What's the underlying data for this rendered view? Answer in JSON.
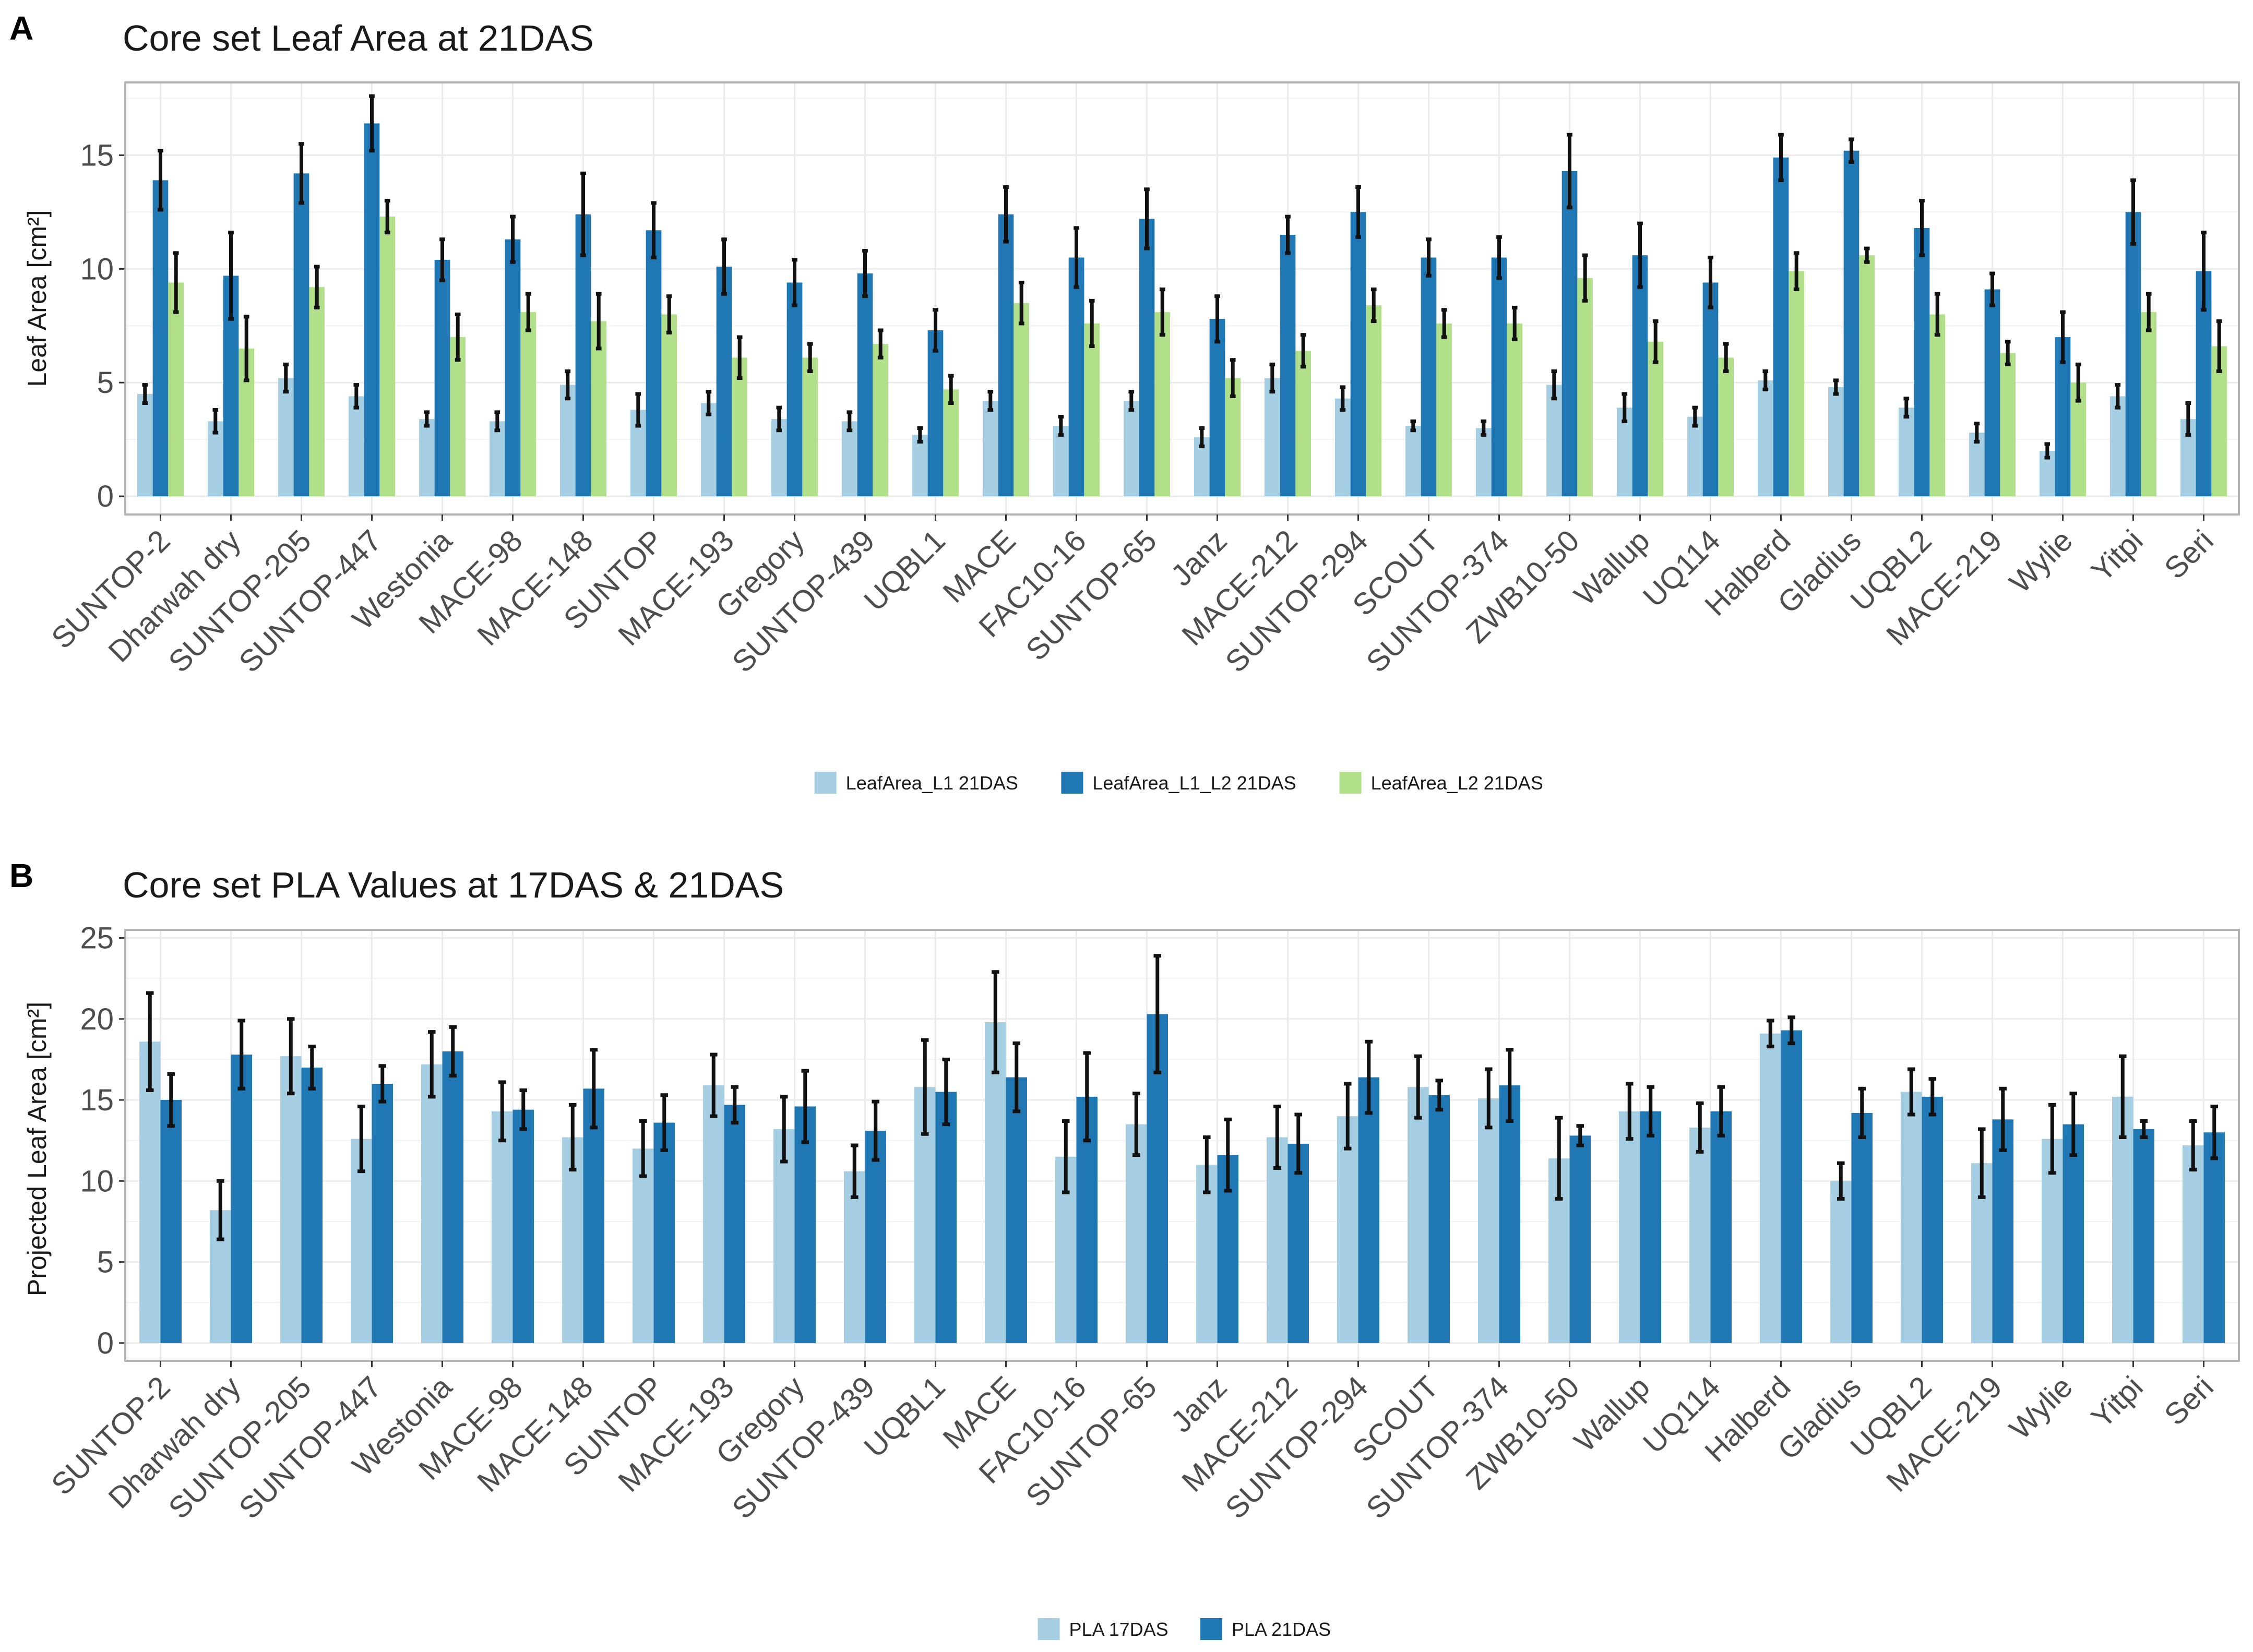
{
  "colors": {
    "l1": "#a6cee3",
    "l1l2": "#1f78b4",
    "l2": "#b2df8a",
    "pla17": "#a6cee3",
    "pla21": "#1f78b4",
    "grid": "#ebebeb",
    "panel_border": "#b3b3b3",
    "text": "#1a1a1a",
    "error_bar": "#111111"
  },
  "chart_data": [
    {
      "panel_label": "A",
      "type": "bar",
      "title": "Core set Leaf Area at 21DAS",
      "xlabel": "",
      "ylabel": "Leaf Area [cm²]",
      "ylim": [
        -0.8,
        18.2
      ],
      "yticks": [
        0,
        5,
        10,
        15
      ],
      "grid": true,
      "legend_position": "bottom",
      "categories": [
        "SUNTOP-2",
        "Dharwah dry",
        "SUNTOP-205",
        "SUNTOP-447",
        "Westonia",
        "MACE-98",
        "MACE-148",
        "SUNTOP",
        "MACE-193",
        "Gregory",
        "SUNTOP-439",
        "UQBL1",
        "MACE",
        "FAC10-16",
        "SUNTOP-65",
        "Janz",
        "MACE-212",
        "SUNTOP-294",
        "SCOUT",
        "SUNTOP-374",
        "ZWB10-50",
        "Wallup",
        "UQ114",
        "Halberd",
        "Gladius",
        "UQBL2",
        "MACE-219",
        "Wylie",
        "Yitpi",
        "Seri"
      ],
      "series": [
        {
          "name": "LeafArea_L1 21DAS",
          "color_key": "l1",
          "values": [
            4.5,
            3.3,
            5.2,
            4.4,
            3.4,
            3.3,
            4.9,
            3.8,
            4.1,
            3.4,
            3.3,
            2.7,
            4.2,
            3.1,
            4.2,
            2.6,
            5.2,
            4.3,
            3.1,
            3.0,
            4.9,
            3.9,
            3.5,
            5.1,
            4.8,
            3.9,
            2.8,
            2.0,
            4.4,
            3.4
          ],
          "errors": [
            0.4,
            0.5,
            0.6,
            0.5,
            0.3,
            0.4,
            0.6,
            0.7,
            0.5,
            0.5,
            0.4,
            0.3,
            0.4,
            0.4,
            0.4,
            0.4,
            0.6,
            0.5,
            0.2,
            0.3,
            0.6,
            0.6,
            0.4,
            0.4,
            0.3,
            0.4,
            0.4,
            0.3,
            0.5,
            0.7
          ]
        },
        {
          "name": "LeafArea_L1_L2 21DAS",
          "color_key": "l1l2",
          "values": [
            13.9,
            9.7,
            14.2,
            16.4,
            10.4,
            11.3,
            12.4,
            11.7,
            10.1,
            9.4,
            9.8,
            7.3,
            12.4,
            10.5,
            12.2,
            7.8,
            11.5,
            12.5,
            10.5,
            10.5,
            14.3,
            10.6,
            9.4,
            14.9,
            15.2,
            11.8,
            9.1,
            7.0,
            12.5,
            9.9
          ],
          "errors": [
            1.3,
            1.9,
            1.3,
            1.2,
            0.9,
            1.0,
            1.8,
            1.2,
            1.2,
            1.0,
            1.0,
            0.9,
            1.2,
            1.3,
            1.3,
            1.0,
            0.8,
            1.1,
            0.8,
            0.9,
            1.6,
            1.4,
            1.1,
            1.0,
            0.5,
            1.2,
            0.7,
            1.1,
            1.4,
            1.7
          ]
        },
        {
          "name": "LeafArea_L2 21DAS",
          "color_key": "l2",
          "values": [
            9.4,
            6.5,
            9.2,
            12.3,
            7.0,
            8.1,
            7.7,
            8.0,
            6.1,
            6.1,
            6.7,
            4.7,
            8.5,
            7.6,
            8.1,
            5.2,
            6.4,
            8.4,
            7.6,
            7.6,
            9.6,
            6.8,
            6.1,
            9.9,
            10.6,
            8.0,
            6.3,
            5.0,
            8.1,
            6.6
          ],
          "errors": [
            1.3,
            1.4,
            0.9,
            0.7,
            1.0,
            0.8,
            1.2,
            0.8,
            0.9,
            0.6,
            0.6,
            0.6,
            0.9,
            1.0,
            1.0,
            0.8,
            0.7,
            0.7,
            0.6,
            0.7,
            1.0,
            0.9,
            0.6,
            0.8,
            0.3,
            0.9,
            0.5,
            0.8,
            0.8,
            1.1
          ]
        }
      ]
    },
    {
      "panel_label": "B",
      "type": "bar",
      "title": "Core set PLA Values at 17DAS & 21DAS",
      "xlabel": "",
      "ylabel": "Projected Leaf Area [cm²]",
      "ylim": [
        -1.1,
        25.5
      ],
      "yticks": [
        0,
        5,
        10,
        15,
        20,
        25
      ],
      "grid": true,
      "legend_position": "bottom",
      "categories": [
        "SUNTOP-2",
        "Dharwah dry",
        "SUNTOP-205",
        "SUNTOP-447",
        "Westonia",
        "MACE-98",
        "MACE-148",
        "SUNTOP",
        "MACE-193",
        "Gregory",
        "SUNTOP-439",
        "UQBL1",
        "MACE",
        "FAC10-16",
        "SUNTOP-65",
        "Janz",
        "MACE-212",
        "SUNTOP-294",
        "SCOUT",
        "SUNTOP-374",
        "ZWB10-50",
        "Wallup",
        "UQ114",
        "Halberd",
        "Gladius",
        "UQBL2",
        "MACE-219",
        "Wylie",
        "Yitpi",
        "Seri"
      ],
      "series": [
        {
          "name": "PLA 17DAS",
          "color_key": "pla17",
          "values": [
            18.6,
            8.2,
            17.7,
            12.6,
            17.2,
            14.3,
            12.7,
            12.0,
            15.9,
            13.2,
            10.6,
            15.8,
            19.8,
            11.5,
            13.5,
            11.0,
            12.7,
            14.0,
            15.8,
            15.1,
            11.4,
            14.3,
            13.3,
            19.1,
            10.0,
            15.5,
            11.1,
            12.6,
            15.2,
            12.2
          ],
          "errors": [
            3.0,
            1.8,
            2.3,
            2.0,
            2.0,
            1.8,
            2.0,
            1.7,
            1.9,
            2.0,
            1.6,
            2.9,
            3.1,
            2.2,
            1.9,
            1.7,
            1.9,
            2.0,
            1.9,
            1.8,
            2.5,
            1.7,
            1.5,
            0.8,
            1.1,
            1.4,
            2.1,
            2.1,
            2.5,
            1.5
          ]
        },
        {
          "name": "PLA 21DAS",
          "color_key": "pla21",
          "values": [
            15.0,
            17.8,
            17.0,
            16.0,
            18.0,
            14.4,
            15.7,
            13.6,
            14.7,
            14.6,
            13.1,
            15.5,
            16.4,
            15.2,
            20.3,
            11.6,
            12.3,
            16.4,
            15.3,
            15.9,
            12.8,
            14.3,
            14.3,
            19.3,
            14.2,
            15.2,
            13.8,
            13.5,
            13.2,
            13.0
          ],
          "errors": [
            1.6,
            2.1,
            1.3,
            1.1,
            1.5,
            1.2,
            2.4,
            1.7,
            1.1,
            2.2,
            1.8,
            2.0,
            2.1,
            2.7,
            3.6,
            2.2,
            1.8,
            2.2,
            0.9,
            2.2,
            0.6,
            1.5,
            1.5,
            0.8,
            1.5,
            1.1,
            1.9,
            1.9,
            0.5,
            1.6
          ]
        }
      ]
    }
  ]
}
